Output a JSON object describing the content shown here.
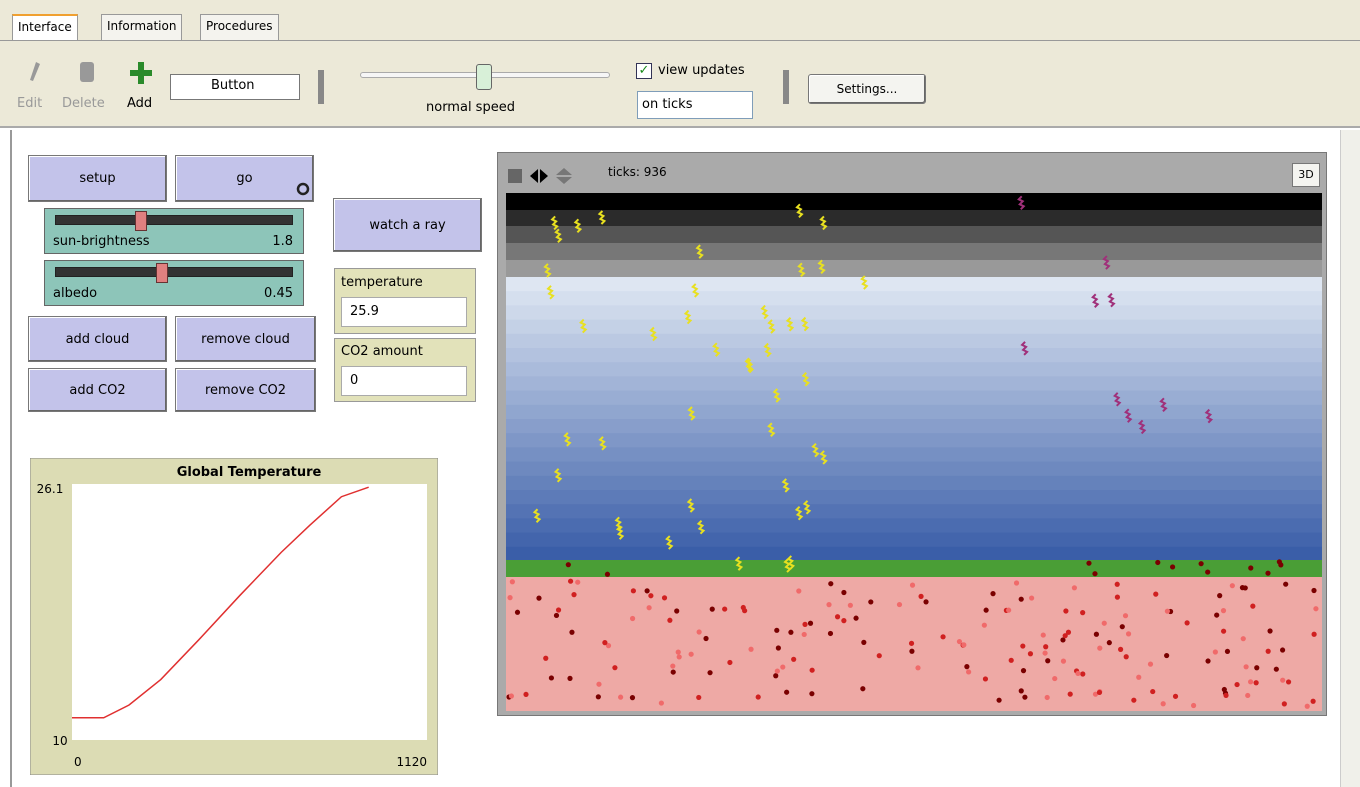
{
  "tabs": [
    "Interface",
    "Information",
    "Procedures"
  ],
  "toolbar": {
    "edit": "Edit",
    "delete": "Delete",
    "add": "Add",
    "widget_type": "Button",
    "speed_label": "normal speed",
    "view_updates": "view updates",
    "update_mode": "on ticks",
    "settings": "Settings..."
  },
  "buttons": [
    "setup",
    "go",
    "watch a ray",
    "add cloud",
    "remove cloud",
    "add CO2",
    "remove CO2"
  ],
  "sliders": [
    {
      "name": "sun-brightness",
      "value": 1.8
    },
    {
      "name": "albedo",
      "value": 0.45
    }
  ],
  "monitors": [
    {
      "name": "temperature",
      "value": 25.9
    },
    {
      "name": "CO2 amount",
      "value": 0
    }
  ],
  "view": {
    "ticks_label": "ticks: 936",
    "button_3d": "3D"
  },
  "plot": {
    "title": "Global Temperature",
    "xlim": [
      0,
      1120
    ],
    "ylim": [
      10,
      26.1
    ],
    "x": [
      0,
      100,
      180,
      280,
      400,
      530,
      660,
      750,
      850,
      936
    ],
    "values": [
      11.4,
      11.4,
      12.2,
      13.8,
      16.3,
      19.1,
      21.8,
      23.5,
      25.3,
      25.9
    ],
    "color": "#e03030"
  }
}
